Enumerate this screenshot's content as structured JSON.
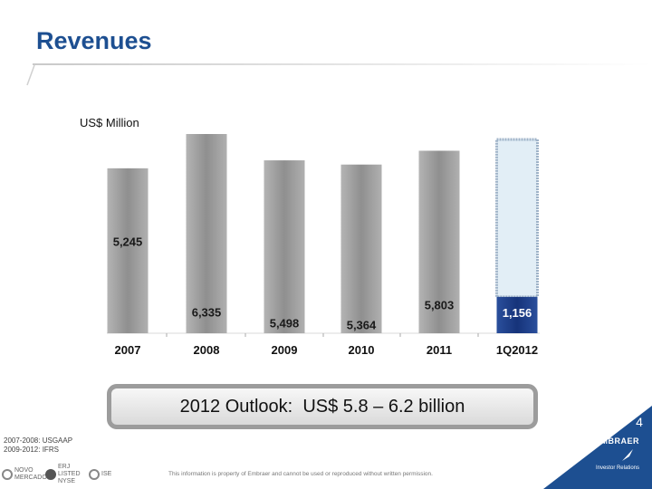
{
  "slide": {
    "title": "Revenues",
    "page_number": "4",
    "outlook": "2012 Outlook:  US$ 5.8 – 6.2 billion",
    "footnotes": [
      "2007-2008: USGAAP",
      "2009-2012: IFRS"
    ],
    "footer_text": "This information is property of Embraer and cannot be used or reproduced without written permission.",
    "footer_logos": [
      "NOVO MERCADO",
      "ERJ LISTED NYSE",
      "ISE"
    ],
    "brand": {
      "name": "EMBRAER",
      "subtitle": "Investor Relations"
    }
  },
  "colors": {
    "title": "#1d4f91",
    "bar_gray": "#9a9a9a",
    "q_fill": "#1e3f8a",
    "q_outline": "#9fb3c8",
    "q_shadow": "#e2eef6",
    "brand_bg": "#1d4f91"
  },
  "chart_data": {
    "type": "bar",
    "title": "",
    "ylabel": "US$ Million",
    "xlabel": "",
    "categories": [
      "2007",
      "2008",
      "2009",
      "2010",
      "2011",
      "1Q2012"
    ],
    "values": [
      5245,
      6335,
      5498,
      5364,
      5803,
      1156
    ],
    "labels": [
      "5,245",
      "6,335",
      "5,498",
      "5,364",
      "5,803",
      "1,156"
    ],
    "ylim": [
      0,
      6335
    ],
    "grid": false,
    "legend": "none"
  }
}
